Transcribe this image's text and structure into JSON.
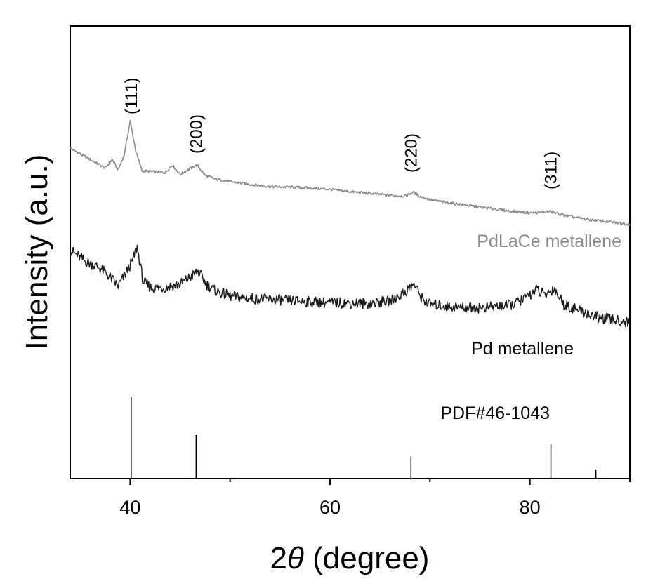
{
  "chart_data": {
    "type": "line",
    "xlabel_prefix": "2",
    "xlabel_theta": "θ",
    "xlabel_suffix": " (degree)",
    "xlabel": "2θ (degree)",
    "ylabel": "Intensity (a.u.)",
    "xlim": [
      34,
      90
    ],
    "ylim": [
      0,
      100
    ],
    "x_ticks": [
      40,
      60,
      80
    ],
    "y_ticks_shown": false,
    "grid": false,
    "series": [
      {
        "name": "PdLaCe metallene",
        "color": "#8a8a8a",
        "x": [
          34,
          36,
          37.5,
          38.2,
          38.8,
          39.4,
          40.0,
          40.6,
          41.2,
          42.5,
          43.5,
          44.2,
          45.0,
          46.0,
          46.7,
          47.5,
          48.5,
          50,
          52,
          54,
          56,
          58,
          60,
          62,
          64,
          66,
          67.5,
          68.3,
          69.0,
          70,
          72,
          74,
          76,
          78,
          80,
          81,
          82.0,
          83,
          84.5,
          86,
          88,
          90
        ],
        "y": [
          73.0,
          70.5,
          68.6,
          70.5,
          68.2,
          71.5,
          79.0,
          72.0,
          68.0,
          67.8,
          67.6,
          69.3,
          67.2,
          68.5,
          69.3,
          67.0,
          66.2,
          65.6,
          65.0,
          64.5,
          64.4,
          64.2,
          63.9,
          63.4,
          63.0,
          62.6,
          62.4,
          63.3,
          62.4,
          61.6,
          60.9,
          60.3,
          59.7,
          59.1,
          58.7,
          58.8,
          59.0,
          58.4,
          57.7,
          57.2,
          56.7,
          56.2
        ]
      },
      {
        "name": "Pd metallene",
        "color": "#1a1a1a",
        "x": [
          34,
          35.5,
          37,
          38.0,
          38.8,
          39.6,
          40.2,
          40.7,
          41.3,
          42.2,
          43.5,
          45.0,
          46.0,
          46.8,
          47.6,
          48.5,
          50,
          52,
          55,
          58,
          61,
          64,
          66,
          67.5,
          68.4,
          69.2,
          70,
          72,
          75,
          78,
          79.5,
          80.6,
          81.5,
          82.4,
          83.4,
          85,
          87,
          90
        ],
        "y": [
          50.5,
          48.0,
          46.5,
          44.5,
          42.5,
          45.5,
          48.0,
          51.2,
          43.5,
          42.0,
          42.2,
          43.0,
          44.5,
          45.8,
          43.0,
          41.5,
          40.3,
          39.8,
          39.5,
          39.0,
          38.8,
          38.7,
          39.2,
          41.2,
          43.0,
          39.8,
          38.5,
          38.0,
          37.7,
          38.3,
          39.8,
          41.8,
          40.5,
          42.0,
          38.5,
          37.0,
          35.5,
          34.5
        ]
      }
    ],
    "reference": {
      "name": "PDF#46-1043",
      "color": "#000000",
      "positions": [
        40.1,
        46.6,
        68.1,
        82.1,
        86.6
      ],
      "intensities": [
        100,
        53,
        27,
        42,
        11
      ]
    },
    "peak_labels": [
      {
        "text": "(111)",
        "x": 40.1
      },
      {
        "text": "(200)",
        "x": 46.6
      },
      {
        "text": "(220)",
        "x": 68.1
      },
      {
        "text": "(311)",
        "x": 82.1
      }
    ]
  }
}
